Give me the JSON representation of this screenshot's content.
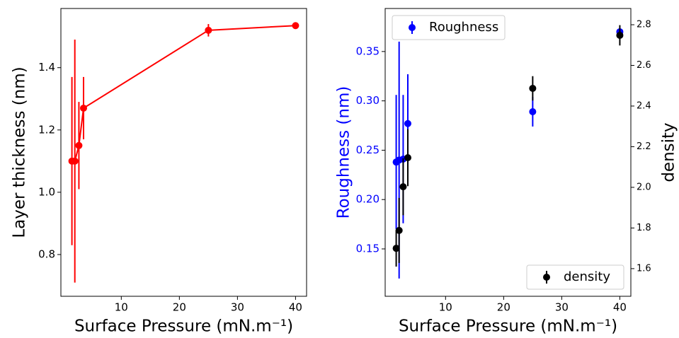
{
  "chart_data": [
    {
      "type": "line",
      "xlabel": "Surface Pressure (mN.m⁻¹)",
      "ylabel": "Layer thickness (nm)",
      "xlim": [
        -0.4,
        41.9
      ],
      "xticks": [
        10,
        20,
        30,
        40
      ],
      "ylim": [
        0.666,
        1.59
      ],
      "yticks": [
        0.8,
        {
          "value": 1.0,
          "label": "1.0"
        },
        1.2,
        1.4
      ],
      "series": [
        {
          "color": "#ff0000",
          "x": [
            1.5,
            2,
            2.7,
            3.5,
            25,
            40
          ],
          "values": [
            1.1,
            1.1,
            1.15,
            1.27,
            1.52,
            1.535
          ],
          "errors": [
            0.27,
            0.39,
            0.14,
            0.1,
            0.02,
            0.01
          ]
        }
      ]
    },
    {
      "type": "scatter",
      "xlabel": "Surface Pressure (mN.m⁻¹)",
      "ylabel": "Roughness (nm)",
      "y2label": "density",
      "xlim": [
        -0.4,
        41.9
      ],
      "xticks": [
        10,
        20,
        30,
        40
      ],
      "ylim": [
        0.102,
        0.3936
      ],
      "yticks": [
        0.15,
        {
          "value": 0.2,
          "label": "0.20"
        },
        0.25,
        {
          "value": 0.3,
          "label": "0.30"
        },
        0.35
      ],
      "y2lim": [
        1.464,
        2.88
      ],
      "y2ticks": [
        1.6,
        1.8,
        {
          "value": 2.0,
          "label": "2.0"
        },
        2.2,
        2.4,
        2.6,
        2.8
      ],
      "series": [
        {
          "name": "Roughness",
          "color": "#0000ff",
          "legend": "upper left",
          "x": [
            1.5,
            2,
            2.7,
            3.5,
            25,
            40
          ],
          "values": [
            0.238,
            0.24,
            0.241,
            0.277,
            0.289,
            0.37
          ],
          "errors": [
            0.068,
            0.12,
            0.065,
            0.05,
            0.015,
            0.003
          ]
        },
        {
          "name": "density",
          "color": "#000000",
          "legend": "lower right",
          "axis": "y2",
          "x": [
            1.5,
            2,
            2.7,
            3.5,
            25,
            40
          ],
          "values": [
            1.7,
            1.788,
            2.003,
            2.146,
            2.487,
            2.748
          ],
          "errors": [
            0.09,
            0.16,
            0.14,
            0.14,
            0.06,
            0.05
          ]
        }
      ]
    }
  ]
}
